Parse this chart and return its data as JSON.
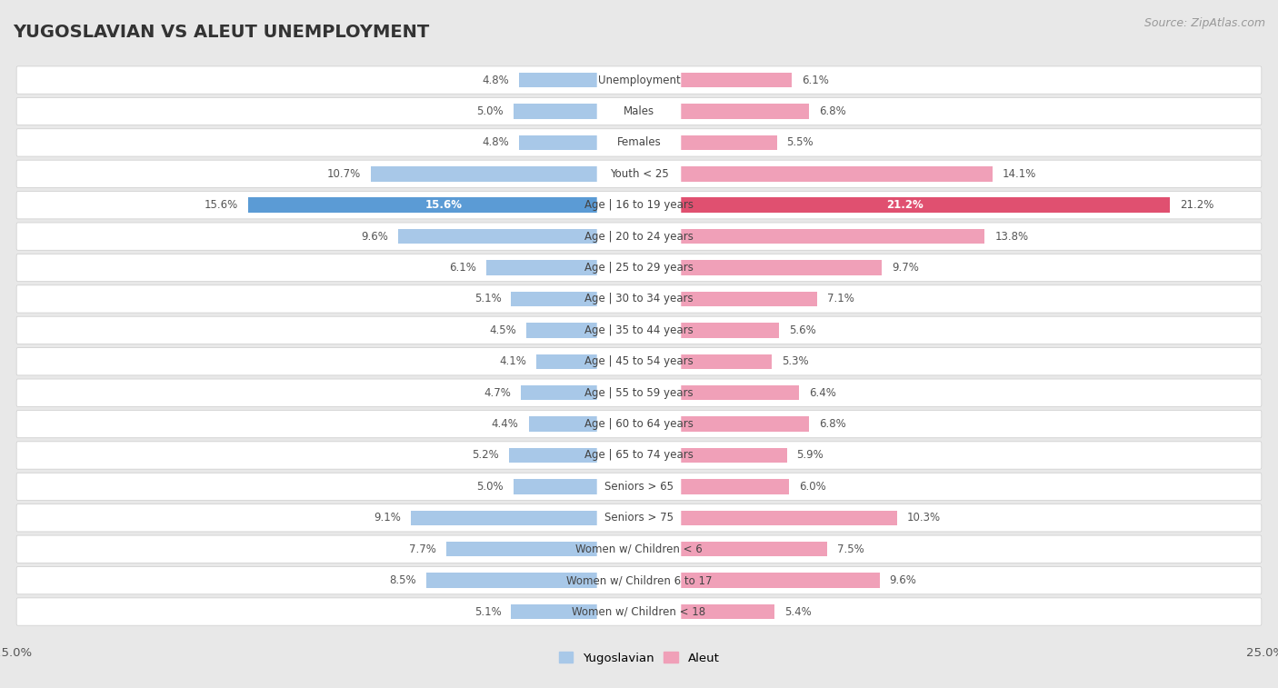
{
  "title": "YUGOSLAVIAN VS ALEUT UNEMPLOYMENT",
  "source": "Source: ZipAtlas.com",
  "categories": [
    "Unemployment",
    "Males",
    "Females",
    "Youth < 25",
    "Age | 16 to 19 years",
    "Age | 20 to 24 years",
    "Age | 25 to 29 years",
    "Age | 30 to 34 years",
    "Age | 35 to 44 years",
    "Age | 45 to 54 years",
    "Age | 55 to 59 years",
    "Age | 60 to 64 years",
    "Age | 65 to 74 years",
    "Seniors > 65",
    "Seniors > 75",
    "Women w/ Children < 6",
    "Women w/ Children 6 to 17",
    "Women w/ Children < 18"
  ],
  "yugoslavian": [
    4.8,
    5.0,
    4.8,
    10.7,
    15.6,
    9.6,
    6.1,
    5.1,
    4.5,
    4.1,
    4.7,
    4.4,
    5.2,
    5.0,
    9.1,
    7.7,
    8.5,
    5.1
  ],
  "aleut": [
    6.1,
    6.8,
    5.5,
    14.1,
    21.2,
    13.8,
    9.7,
    7.1,
    5.6,
    5.3,
    6.4,
    6.8,
    5.9,
    6.0,
    10.3,
    7.5,
    9.6,
    5.4
  ],
  "yugoslavian_color": "#a8c8e8",
  "aleut_color": "#f0a0b8",
  "yugoslavian_highlight": "#5b9bd5",
  "aleut_highlight": "#e05070",
  "highlight_row": 4,
  "xlim": 25.0,
  "bg_color": "#e8e8e8",
  "row_bg_color": "#ffffff",
  "row_border_color": "#cccccc",
  "label_fontsize": 8.5,
  "title_fontsize": 14,
  "source_fontsize": 9,
  "value_fontsize": 8.5,
  "legend_labels": [
    "Yugoslavian",
    "Aleut"
  ]
}
